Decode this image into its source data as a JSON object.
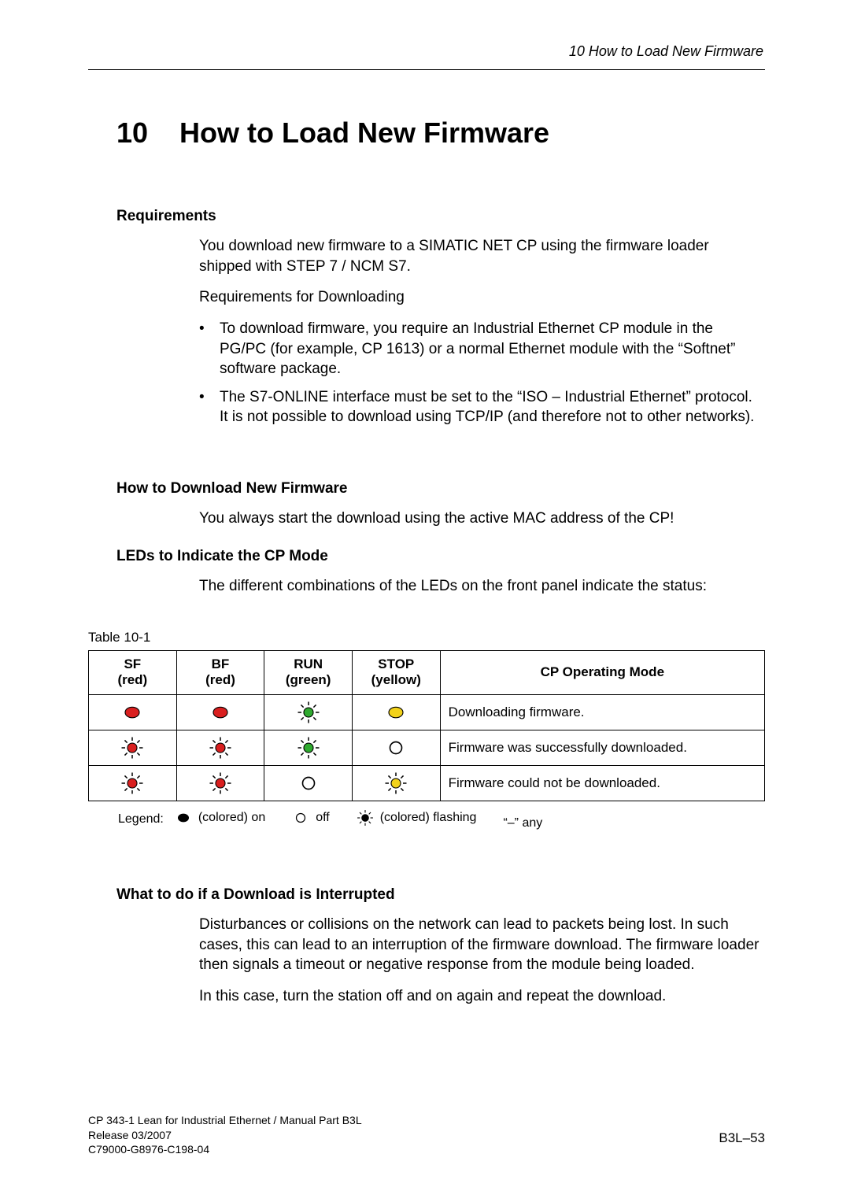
{
  "running_head": "10   How to Load New Firmware",
  "chapter": {
    "number": "10",
    "title": "How to Load New Firmware"
  },
  "requirements": {
    "heading": "Requirements",
    "p1": "You download new firmware to a SIMATIC NET CP using the firmware loader shipped with STEP 7 / NCM S7.",
    "p2": "Requirements for Downloading",
    "bullets": [
      "To download firmware, you require an Industrial Ethernet CP module in the PG/PC (for example, CP 1613) or a normal Ethernet module with the “Softnet” software package.",
      "The S7-ONLINE interface must be set to the “ISO – Industrial Ethernet” protocol. It is not possible to download using TCP/IP (and therefore not to other networks)."
    ]
  },
  "howto": {
    "heading": "How to Download New Firmware",
    "p1": "You always start the download using the active MAC address of the CP!"
  },
  "leds": {
    "heading": "LEDs to Indicate the CP Mode",
    "p1": "The different combinations of the LEDs on the front panel indicate the status:"
  },
  "table": {
    "caption": "Table 10-1",
    "columns": [
      {
        "l1": "SF",
        "l2": "(red)"
      },
      {
        "l1": "BF",
        "l2": "(red)"
      },
      {
        "l1": "RUN",
        "l2": "(green)"
      },
      {
        "l1": "STOP",
        "l2": "(yellow)"
      },
      {
        "l1": "CP Operating Mode",
        "l2": ""
      }
    ],
    "col_widths": [
      "13%",
      "13%",
      "13%",
      "13%",
      "48%"
    ],
    "rows": [
      {
        "cells": [
          {
            "state": "on",
            "color": "#d91f1f"
          },
          {
            "state": "on",
            "color": "#d91f1f"
          },
          {
            "state": "flash",
            "color": "#2faa2f"
          },
          {
            "state": "on",
            "color": "#f2d21a"
          }
        ],
        "desc": "Downloading firmware."
      },
      {
        "cells": [
          {
            "state": "flash",
            "color": "#d91f1f"
          },
          {
            "state": "flash",
            "color": "#d91f1f"
          },
          {
            "state": "flash",
            "color": "#2faa2f"
          },
          {
            "state": "off",
            "color": "#000000"
          }
        ],
        "desc": "Firmware was successfully downloaded."
      },
      {
        "cells": [
          {
            "state": "flash",
            "color": "#d91f1f"
          },
          {
            "state": "flash",
            "color": "#d91f1f"
          },
          {
            "state": "off",
            "color": "#000000"
          },
          {
            "state": "flash",
            "color": "#f2d21a"
          }
        ],
        "desc": "Firmware could not be downloaded."
      }
    ],
    "legend": {
      "label": "Legend:",
      "items": [
        {
          "state": "on",
          "color": "#000000",
          "text": "(colored) on"
        },
        {
          "state": "off",
          "color": "#000000",
          "text": "off"
        },
        {
          "state": "flash",
          "color": "#000000",
          "text": "(colored) flashing"
        },
        {
          "state": "text",
          "text": "“–” any"
        }
      ]
    }
  },
  "whattodo": {
    "heading": "What to do if a Download is Interrupted",
    "p1": "Disturbances or collisions on the network can lead to packets being lost. In such cases, this can lead to an interruption of the firmware download. The firmware loader then signals a timeout or negative response from the module being loaded.",
    "p2": "In this case, turn the station off and on again and repeat the download."
  },
  "footer": {
    "l1": "CP 343-1 Lean for Industrial Ethernet / Manual Part B3L",
    "l2": "Release 03/2007",
    "l3": "C79000-G8976-C198-04",
    "pagenum": "B3L–53"
  }
}
